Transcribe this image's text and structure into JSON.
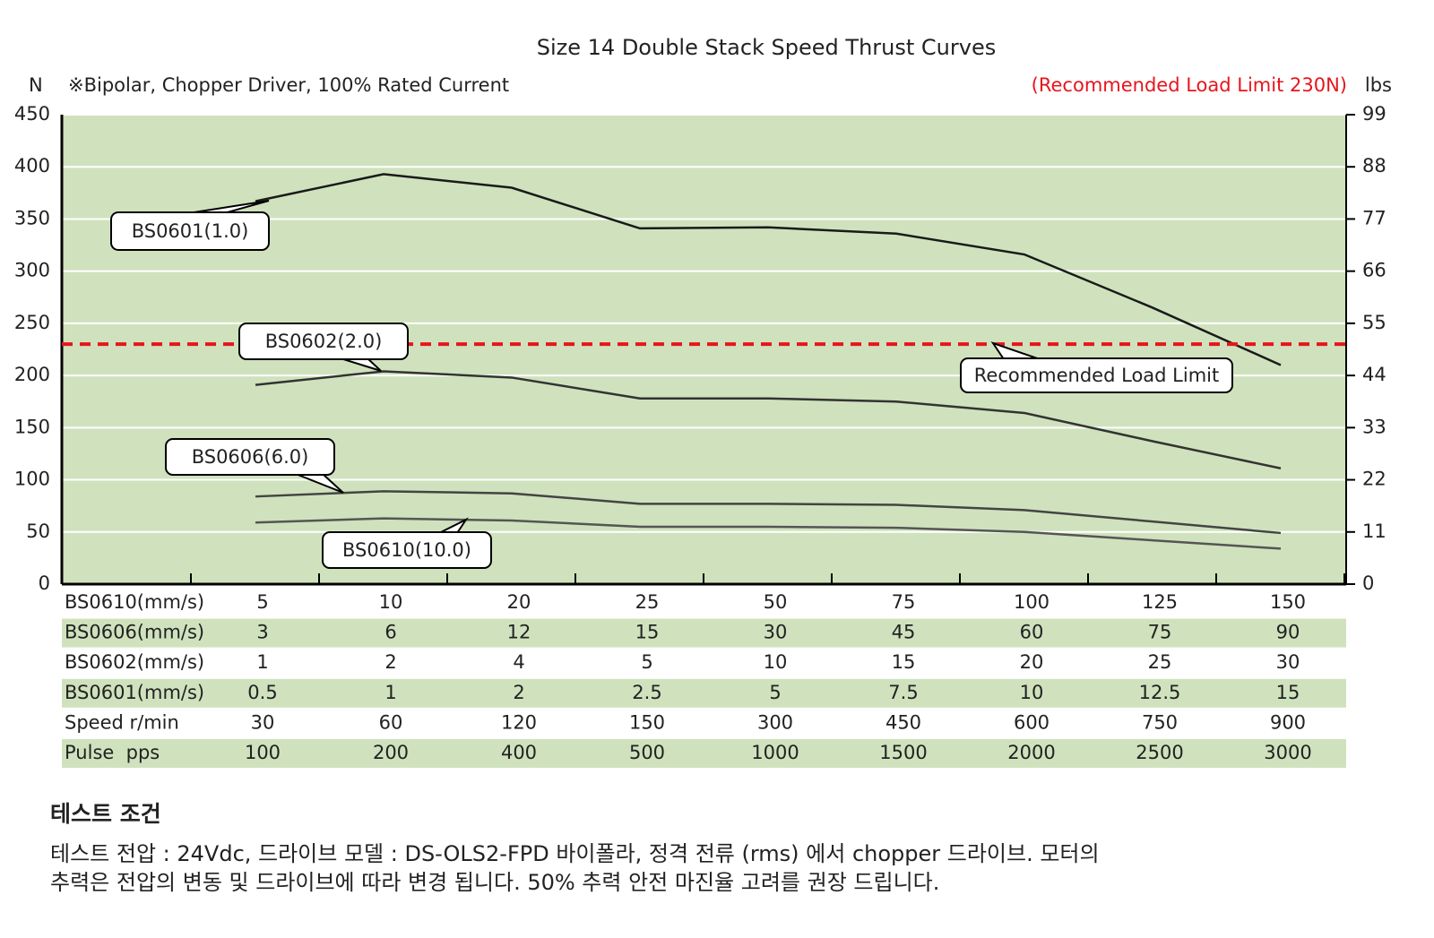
{
  "chart_data": {
    "type": "line",
    "title": "Size 14 Double Stack Speed Thrust Curves",
    "subtitle": "※Bipolar, Chopper Driver, 100% Rated Current",
    "y_label": "N",
    "y2_label": "lbs",
    "x_label": "BS0610(mm/s)",
    "categories": [
      5,
      10,
      20,
      25,
      50,
      75,
      100,
      125,
      150
    ],
    "series": [
      {
        "name": "BS0601(1.0)",
        "color": "#1a1a1a",
        "values": [
          367,
          393,
          380,
          341,
          342,
          336,
          316,
          265,
          210
        ]
      },
      {
        "name": "BS0602(2.0)",
        "color": "#333333",
        "values": [
          191,
          204,
          198,
          178,
          178,
          175,
          164,
          137,
          111
        ]
      },
      {
        "name": "BS0606(6.0)",
        "color": "#444444",
        "values": [
          84,
          89,
          87,
          77,
          77,
          76,
          71,
          60,
          49
        ]
      },
      {
        "name": "BS0610(10.0)",
        "color": "#555555",
        "values": [
          59,
          63,
          61,
          55,
          55,
          54,
          50,
          42,
          34
        ]
      }
    ],
    "ylim": [
      0,
      450
    ],
    "yticks": [
      0,
      50,
      100,
      150,
      200,
      250,
      300,
      350,
      400,
      450
    ],
    "y2lim": [
      0,
      99
    ],
    "y2ticks": [
      0,
      11,
      22,
      33,
      44,
      55,
      66,
      77,
      88,
      99
    ],
    "grid": true,
    "plot_color": "#cfe2bd",
    "limit": {
      "value": 230,
      "label": "Recommended Load Limit",
      "note": "(Recommended Load Limit 230N)",
      "color": "#e8141c"
    },
    "x_table": [
      {
        "label": "BS0606(mm/s)",
        "values": [
          3,
          6,
          12,
          15,
          30,
          45,
          60,
          75,
          90
        ]
      },
      {
        "label": "BS0602(mm/s)",
        "values": [
          1,
          2,
          4,
          5,
          10,
          15,
          20,
          25,
          30
        ]
      },
      {
        "label": "BS0601(mm/s)",
        "values": [
          0.5,
          1,
          2,
          2.5,
          5,
          7.5,
          10,
          12.5,
          15
        ]
      },
      {
        "label": "Speed r/min",
        "values": [
          30,
          60,
          120,
          150,
          300,
          450,
          600,
          750,
          900
        ]
      },
      {
        "label": "Pulse  pps",
        "values": [
          100,
          200,
          400,
          500,
          1000,
          1500,
          2000,
          2500,
          3000
        ]
      }
    ]
  },
  "notes": {
    "heading": "테스트 조건",
    "lines": [
      "테스트 전압 : 24Vdc, 드라이브 모델 : DS-OLS2-FPD 바이폴라, 정격 전류 (rms) 에서 chopper 드라이브. 모터의",
      "추력은 전압의 변동 및 드라이브에 따라 변경 됩니다. 50% 추력 안전 마진율 고려를 권장 드립니다."
    ]
  }
}
